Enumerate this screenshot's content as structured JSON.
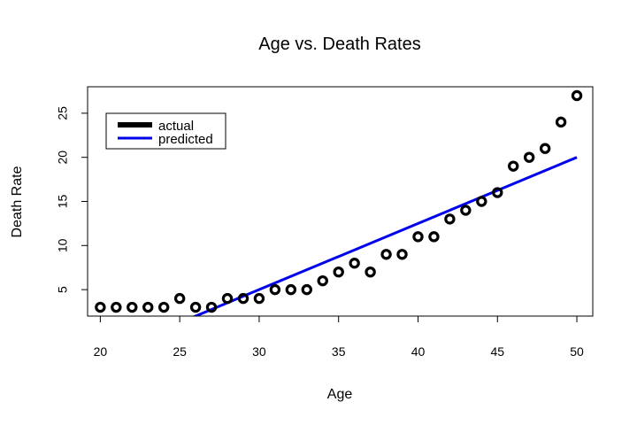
{
  "chart_data": {
    "type": "scatter",
    "title": "Age vs. Death Rates",
    "xlabel": "Age",
    "ylabel": "Death Rate",
    "xlim": [
      19.2,
      51.0
    ],
    "ylim": [
      2.0,
      28.0
    ],
    "x_ticks": [
      20,
      25,
      30,
      35,
      40,
      45,
      50
    ],
    "y_ticks": [
      5,
      10,
      15,
      20,
      25
    ],
    "grid": false,
    "legend_position": "top-left",
    "series": [
      {
        "name": "actual",
        "kind": "points",
        "color": "#000000",
        "x": [
          20,
          21,
          22,
          23,
          24,
          25,
          26,
          27,
          28,
          29,
          30,
          31,
          32,
          33,
          34,
          35,
          36,
          37,
          38,
          39,
          40,
          41,
          42,
          43,
          44,
          45,
          46,
          47,
          48,
          49,
          50
        ],
        "y": [
          3,
          3,
          3,
          3,
          3,
          4,
          3,
          3,
          4,
          4,
          4,
          5,
          5,
          5,
          6,
          7,
          8,
          7,
          9,
          9,
          11,
          11,
          13,
          14,
          15,
          16,
          19,
          20,
          21,
          24,
          27
        ]
      },
      {
        "name": "predicted",
        "kind": "line",
        "color": "#0000ee",
        "x": [
          20,
          50
        ],
        "y": [
          -2.5,
          20.0
        ]
      }
    ]
  }
}
